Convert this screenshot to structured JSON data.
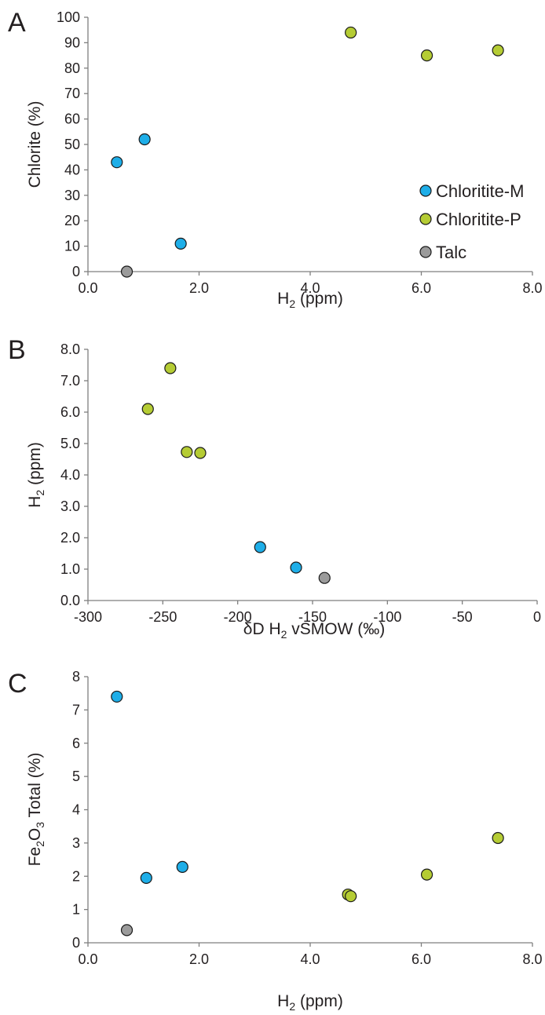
{
  "colors": {
    "Chloritite-M": "#1eaee8",
    "Chloritite-P": "#b5cc34",
    "Talc": "#9b9b9b"
  },
  "legend": {
    "items": [
      "Chloritite-M",
      "Chloritite-P",
      "Talc"
    ]
  },
  "chart_data": [
    {
      "panel": "A",
      "type": "scatter",
      "xlim": [
        0,
        8
      ],
      "ylim": [
        0,
        100
      ],
      "xticks": [
        "0.0",
        "2.0",
        "4.0",
        "6.0",
        "8.0"
      ],
      "yticks": [
        "0",
        "10",
        "20",
        "30",
        "40",
        "50",
        "60",
        "70",
        "80",
        "90",
        "100"
      ],
      "xlabel": "H2 (ppm)",
      "ylabel": "Chlorite (%)",
      "legend_position": "right",
      "series": [
        {
          "name": "Chloritite-M",
          "points": [
            [
              0.52,
              43
            ],
            [
              1.02,
              52
            ],
            [
              1.67,
              11
            ]
          ]
        },
        {
          "name": "Chloritite-P",
          "points": [
            [
              4.73,
              94
            ],
            [
              6.1,
              85
            ],
            [
              7.38,
              87
            ]
          ]
        },
        {
          "name": "Talc",
          "points": [
            [
              0.7,
              0
            ]
          ]
        }
      ]
    },
    {
      "panel": "B",
      "type": "scatter",
      "xlim": [
        -300,
        0
      ],
      "ylim": [
        0,
        8
      ],
      "xticks": [
        "-300",
        "-250",
        "-200",
        "-150",
        "-100",
        "-50",
        "0"
      ],
      "yticks": [
        "0.0",
        "1.0",
        "2.0",
        "3.0",
        "4.0",
        "5.0",
        "6.0",
        "7.0",
        "8.0"
      ],
      "xlabel": "δD H2 vSMOW (‰)",
      "ylabel": "H2 (ppm)",
      "series": [
        {
          "name": "Chloritite-M",
          "points": [
            [
              -185,
              1.7
            ],
            [
              -161,
              1.05
            ]
          ]
        },
        {
          "name": "Chloritite-P",
          "points": [
            [
              -260,
              6.1
            ],
            [
              -245,
              7.4
            ],
            [
              -234,
              4.73
            ],
            [
              -225,
              4.7
            ]
          ]
        },
        {
          "name": "Talc",
          "points": [
            [
              -142,
              0.72
            ]
          ]
        }
      ]
    },
    {
      "panel": "C",
      "type": "scatter",
      "xlim": [
        0,
        8
      ],
      "ylim": [
        0,
        8
      ],
      "xticks": [
        "0.0",
        "2.0",
        "4.0",
        "6.0",
        "8.0"
      ],
      "yticks": [
        "0",
        "1",
        "2",
        "3",
        "4",
        "5",
        "6",
        "7",
        "8"
      ],
      "xlabel": "H2 (ppm)",
      "ylabel": "Fe2O3 Total (%)",
      "series": [
        {
          "name": "Chloritite-M",
          "points": [
            [
              0.52,
              7.4
            ],
            [
              1.05,
              1.95
            ],
            [
              1.7,
              2.28
            ]
          ]
        },
        {
          "name": "Chloritite-P",
          "points": [
            [
              4.68,
              1.45
            ],
            [
              4.73,
              1.4
            ],
            [
              6.1,
              2.05
            ],
            [
              7.38,
              3.15
            ]
          ]
        },
        {
          "name": "Talc",
          "points": [
            [
              0.7,
              0.38
            ]
          ]
        }
      ]
    }
  ]
}
